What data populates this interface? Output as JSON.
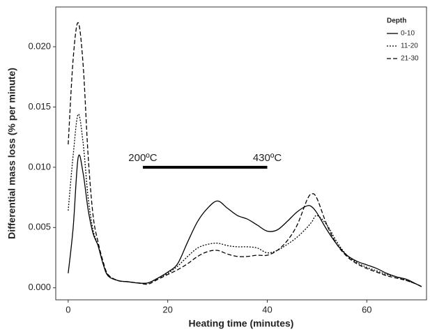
{
  "chart_data": {
    "type": "line",
    "x_label": "Heating time (minutes)",
    "y_label": "Differential mass loss (% per minute)",
    "x": [
      0,
      1,
      2,
      3,
      4,
      5,
      6,
      7,
      8,
      10,
      12,
      14,
      16,
      18,
      20,
      22,
      24,
      26,
      28,
      30,
      32,
      34,
      36,
      38,
      40,
      42,
      44,
      46,
      48,
      49,
      50,
      52,
      54,
      56,
      58,
      60,
      62,
      64,
      66,
      68,
      70,
      71
    ],
    "series": [
      {
        "name": "0-10",
        "color": "#000000",
        "dash": "solid",
        "values": [
          0.0012,
          0.005,
          0.0108,
          0.0095,
          0.0065,
          0.0045,
          0.0035,
          0.002,
          0.001,
          0.0006,
          0.0005,
          0.0004,
          0.0004,
          0.0008,
          0.0013,
          0.002,
          0.0038,
          0.0055,
          0.0066,
          0.0072,
          0.0066,
          0.006,
          0.0057,
          0.0052,
          0.0047,
          0.0048,
          0.0055,
          0.0063,
          0.0068,
          0.0067,
          0.0062,
          0.0048,
          0.0036,
          0.0027,
          0.0022,
          0.0019,
          0.0016,
          0.0012,
          0.0009,
          0.0007,
          0.0003,
          0.0001
        ]
      },
      {
        "name": "11-20",
        "color": "#000000",
        "dash": "dotted",
        "values": [
          0.0064,
          0.011,
          0.0144,
          0.012,
          0.0075,
          0.0048,
          0.0035,
          0.002,
          0.001,
          0.0006,
          0.0005,
          0.0004,
          0.0004,
          0.0008,
          0.0012,
          0.0018,
          0.0026,
          0.0033,
          0.0036,
          0.0037,
          0.0035,
          0.0034,
          0.0034,
          0.0033,
          0.0029,
          0.0031,
          0.0036,
          0.0042,
          0.005,
          0.0055,
          0.006,
          0.0052,
          0.0038,
          0.0027,
          0.0021,
          0.0017,
          0.0014,
          0.0011,
          0.0009,
          0.0006,
          0.0003,
          0.0001
        ]
      },
      {
        "name": "21-30",
        "color": "#000000",
        "dash": "dashed",
        "values": [
          0.0119,
          0.019,
          0.022,
          0.0185,
          0.011,
          0.006,
          0.0038,
          0.0022,
          0.0011,
          0.0006,
          0.0005,
          0.0004,
          0.0003,
          0.0007,
          0.0011,
          0.0015,
          0.002,
          0.0026,
          0.003,
          0.0031,
          0.0028,
          0.0026,
          0.0026,
          0.0027,
          0.0027,
          0.0031,
          0.0039,
          0.0052,
          0.0073,
          0.0078,
          0.0074,
          0.0052,
          0.0036,
          0.0026,
          0.002,
          0.0016,
          0.0013,
          0.001,
          0.0008,
          0.0006,
          0.0003,
          0.0001
        ]
      }
    ],
    "legend_title": "Depth",
    "legend_position": "top-right",
    "xlim": [
      -2.5,
      72
    ],
    "xticks": [
      0,
      20,
      40,
      60
    ],
    "ylim": [
      -0.001,
      0.0233
    ],
    "yticks": [
      {
        "value": 0,
        "label": "0.000"
      },
      {
        "value": 0.005,
        "label": "0.005"
      },
      {
        "value": 0.01,
        "label": "0.010"
      },
      {
        "value": 0.015,
        "label": "0.015"
      },
      {
        "value": 0.02,
        "label": "0.020"
      }
    ],
    "range_bar": {
      "x": [
        15,
        40
      ],
      "y": 0.01,
      "labels": [
        "200ºC",
        "430ºC"
      ]
    }
  }
}
